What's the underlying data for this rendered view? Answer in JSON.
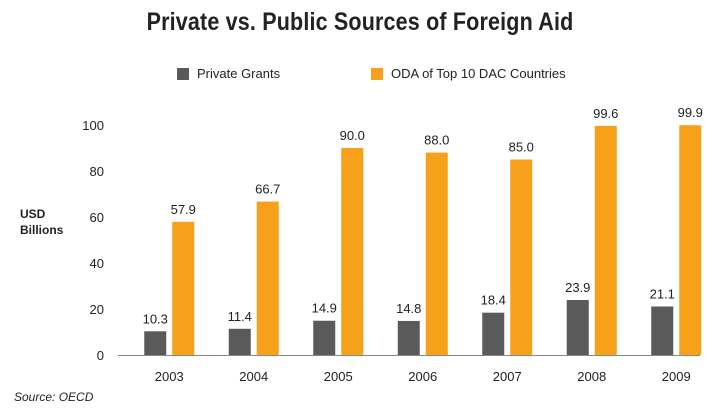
{
  "chart_data": {
    "type": "bar",
    "title": "Private vs. Public Sources of Foreign Aid",
    "ylabel": "USD Billions",
    "ylabel_lines": [
      "USD",
      "Billions"
    ],
    "categories": [
      "2003",
      "2004",
      "2005",
      "2006",
      "2007",
      "2008",
      "2009"
    ],
    "series": [
      {
        "name": "Private Grants",
        "color": "#5a5a5a",
        "values": [
          10.3,
          11.4,
          14.9,
          14.8,
          18.4,
          23.9,
          21.1
        ],
        "labels": [
          "10.3",
          "11.4",
          "14.9",
          "14.8",
          "18.4",
          "23.9",
          "21.1"
        ]
      },
      {
        "name": "ODA of Top 10 DAC Countries",
        "color": "#f7a11a",
        "values": [
          57.9,
          66.7,
          90.0,
          88.0,
          85.0,
          99.6,
          99.9
        ],
        "labels": [
          "57.9",
          "66.7",
          "90.0",
          "88.0",
          "85.0",
          "99.6",
          "99.9"
        ]
      }
    ],
    "ylim": [
      0,
      100
    ],
    "yticks": [
      0,
      20,
      40,
      60,
      80,
      100
    ],
    "grid": false,
    "legend_position": "top"
  },
  "source": "Source: OECD"
}
